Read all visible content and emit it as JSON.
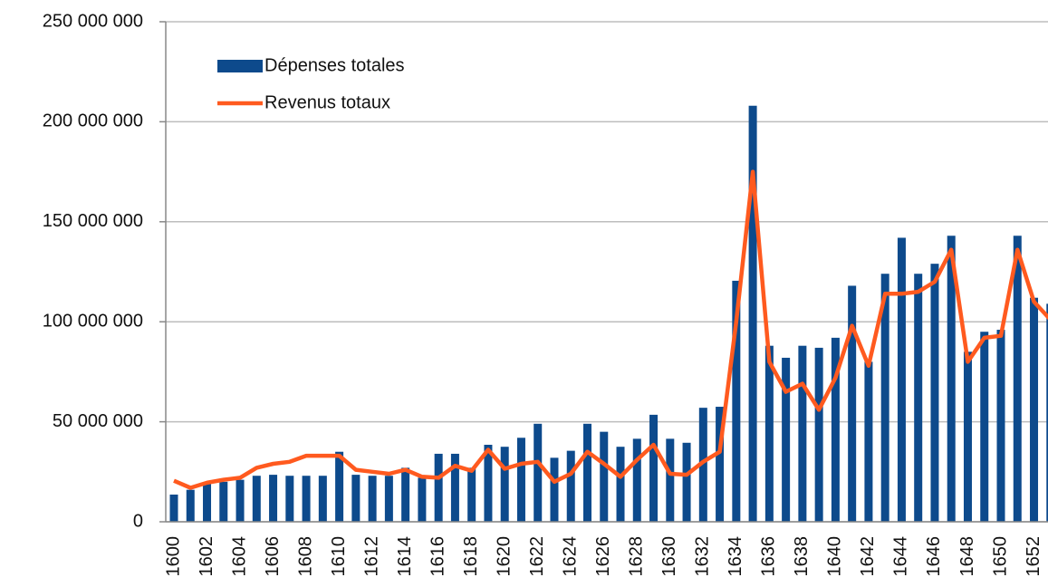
{
  "chart_data": {
    "type": "bar_line",
    "categories": [
      "1600",
      null,
      "1602",
      null,
      "1604",
      null,
      "1606",
      null,
      "1608",
      null,
      "1610",
      null,
      "1612",
      null,
      "1614",
      null,
      "1616",
      null,
      "1618",
      null,
      "1620",
      null,
      "1622",
      null,
      "1624",
      null,
      "1626",
      null,
      "1628",
      null,
      "1630",
      null,
      "1632",
      null,
      "1634",
      null,
      "1636",
      null,
      "1638",
      null,
      "1640",
      null,
      "1642",
      null,
      "1644",
      null,
      "1646",
      null,
      "1648",
      null,
      "1650",
      null,
      "1652",
      null
    ],
    "series": [
      {
        "name": "Dépenses totales",
        "type": "bar",
        "color": "#0d4a8c",
        "values": [
          13600000,
          16000000,
          19000000,
          20000000,
          21000000,
          23000000,
          23500000,
          23000000,
          23000000,
          23000000,
          35000000,
          23500000,
          23000000,
          23000000,
          27000000,
          22000000,
          34000000,
          34000000,
          27000000,
          38500000,
          37500000,
          42000000,
          49000000,
          32000000,
          35500000,
          49000000,
          45000000,
          37500000,
          41500000,
          53500000,
          41500000,
          39500000,
          57000000,
          57500000,
          120500000,
          208000000,
          88000000,
          82000000,
          88000000,
          87000000,
          92000000,
          118000000,
          80000000,
          124000000,
          142000000,
          124000000,
          129000000,
          143000000,
          85000000,
          95000000,
          96000000,
          143000000,
          112000000,
          109000000
        ]
      },
      {
        "name": "Revenus totaux",
        "type": "line",
        "color": "#ff5a1f",
        "values": [
          20500000,
          17000000,
          19500000,
          21000000,
          22000000,
          27000000,
          29000000,
          30000000,
          33000000,
          33000000,
          33000000,
          26000000,
          25000000,
          24000000,
          26000000,
          22500000,
          22000000,
          28000000,
          25500000,
          36000000,
          26500000,
          29000000,
          30000000,
          20000000,
          24000000,
          35000000,
          29000000,
          22500000,
          31000000,
          38500000,
          24000000,
          23500000,
          30000000,
          35000000,
          100000000,
          175000000,
          80000000,
          65000000,
          69000000,
          56000000,
          72000000,
          98000000,
          78000000,
          114000000,
          114000000,
          115000000,
          120000000,
          136000000,
          80000000,
          92000000,
          93000000,
          136000000,
          110000000,
          101000000
        ]
      }
    ],
    "ylim": [
      0,
      250000000
    ],
    "yticks": [
      0,
      {
        "value": 50000000,
        "label": "50 000 000"
      },
      {
        "value": 100000000,
        "label": "100 000 000"
      },
      {
        "value": 150000000,
        "label": "150 000 000"
      },
      {
        "value": 200000000,
        "label": "200 000 000"
      },
      {
        "value": 250000000,
        "label": "250 000 000"
      }
    ],
    "grid": true,
    "legend": "upper-left"
  }
}
